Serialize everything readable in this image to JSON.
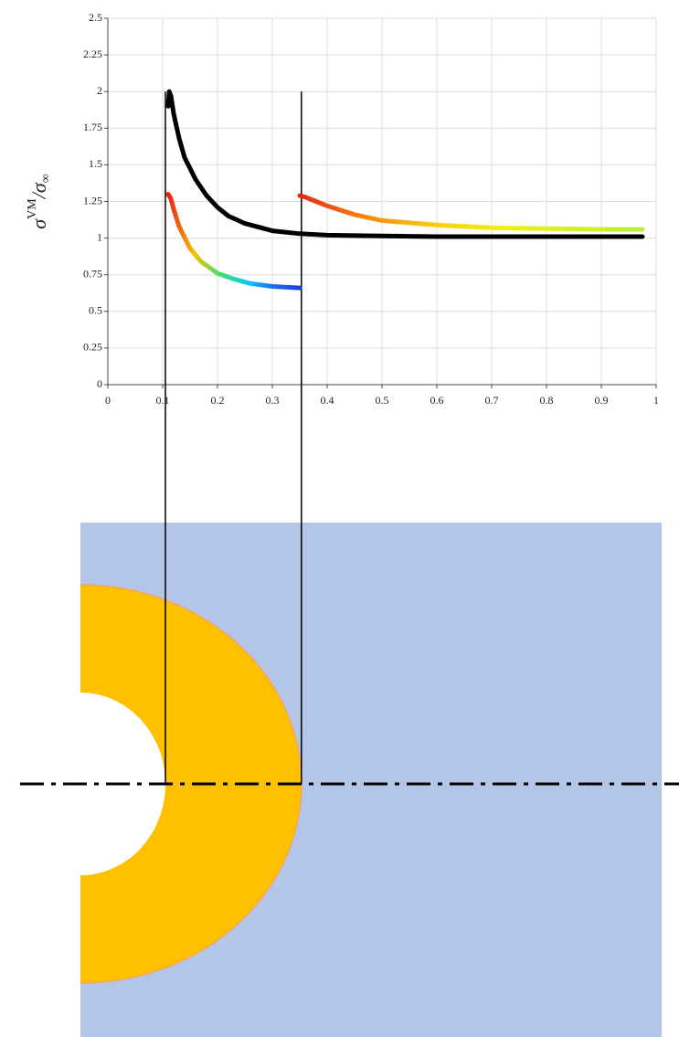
{
  "chart_data": {
    "type": "line",
    "ylabel": [
      "σ",
      "VM",
      "/σ",
      "∞"
    ],
    "xlim": [
      0,
      1
    ],
    "ylim": [
      0,
      2.5
    ],
    "xticks": [
      0,
      0.1,
      0.2,
      0.3,
      0.4,
      0.5,
      0.6,
      0.7,
      0.8,
      0.9,
      1
    ],
    "yticks": [
      0,
      0.25,
      0.5,
      0.75,
      1,
      1.25,
      1.5,
      1.75,
      2,
      2.25,
      2.5
    ],
    "grid": true,
    "series": [
      {
        "colors": [
          "#000000"
        ],
        "x": [
          0.11,
          0.112,
          0.115,
          0.12,
          0.13,
          0.14,
          0.16,
          0.18,
          0.2,
          0.22,
          0.25,
          0.3,
          0.35,
          0.4,
          0.5,
          0.6,
          0.7,
          0.8,
          0.9,
          0.975
        ],
        "values": [
          1.9,
          2.0,
          1.97,
          1.85,
          1.68,
          1.55,
          1.4,
          1.29,
          1.21,
          1.15,
          1.1,
          1.05,
          1.03,
          1.02,
          1.015,
          1.01,
          1.01,
          1.01,
          1.01,
          1.01
        ]
      },
      {
        "colors": [
          "#e8201a",
          "#f5c400",
          "#38e070",
          "#10c8f0",
          "#1c6cf0",
          "#1840e0"
        ],
        "x": [
          0.11,
          0.115,
          0.12,
          0.13,
          0.15,
          0.17,
          0.2,
          0.23,
          0.26,
          0.3,
          0.35
        ],
        "values": [
          1.3,
          1.27,
          1.2,
          1.08,
          0.93,
          0.84,
          0.76,
          0.72,
          0.69,
          0.67,
          0.66
        ]
      },
      {
        "colors": [
          "#e82818",
          "#f88a10",
          "#f8d010",
          "#eef010",
          "#d2f020",
          "#b8ee40"
        ],
        "x": [
          0.35,
          0.36,
          0.38,
          0.4,
          0.45,
          0.5,
          0.6,
          0.7,
          0.8,
          0.9,
          0.975
        ],
        "values": [
          1.29,
          1.28,
          1.25,
          1.22,
          1.16,
          1.12,
          1.09,
          1.07,
          1.065,
          1.06,
          1.06
        ]
      }
    ],
    "vlines": [
      0.105,
      0.353
    ]
  }
}
